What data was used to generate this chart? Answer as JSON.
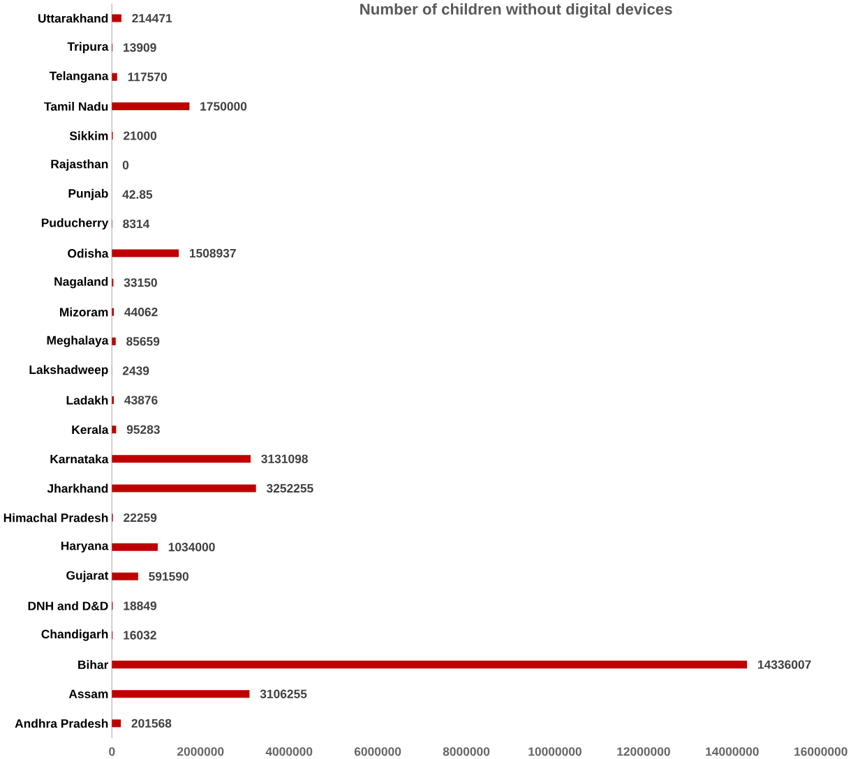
{
  "chart_data": {
    "type": "bar",
    "orientation": "horizontal",
    "title": "Number of children without digital devices",
    "categories": [
      "Uttarakhand",
      "Tripura",
      "Telangana",
      "Tamil Nadu",
      "Sikkim",
      "Rajasthan",
      "Punjab",
      "Puducherry",
      "Odisha",
      "Nagaland",
      "Mizoram",
      "Meghalaya",
      "Lakshadweep",
      "Ladakh",
      "Kerala",
      "Karnataka",
      "Jharkhand",
      "Himachal Pradesh",
      "Haryana",
      "Gujarat",
      "DNH and D&D",
      "Chandigarh",
      "Bihar",
      "Assam",
      "Andhra Pradesh"
    ],
    "values": [
      214471,
      13909,
      117570,
      1750000,
      21000,
      0,
      42.85,
      8314,
      1508937,
      33150,
      44062,
      85659,
      2439,
      43876,
      95283,
      3131098,
      3252255,
      22259,
      1034000,
      591590,
      18849,
      16032,
      14336007,
      3106255,
      201568
    ],
    "color": "#c00000",
    "data_labels": true,
    "xlim": [
      0,
      16000000
    ],
    "xticks": [
      0,
      2000000,
      4000000,
      6000000,
      8000000,
      10000000,
      12000000,
      14000000,
      16000000
    ]
  }
}
